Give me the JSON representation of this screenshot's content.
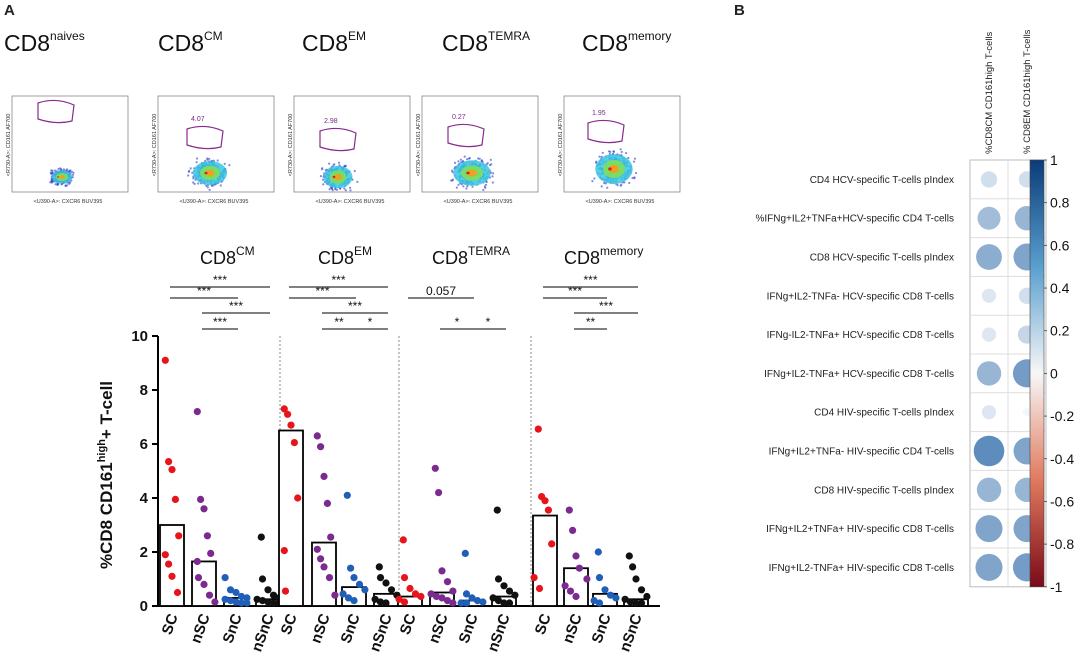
{
  "panel_a_label": "A",
  "panel_b_label": "B",
  "facs": [
    {
      "title": "CD8",
      "sup": "naives",
      "gate_value": "7.5e-3",
      "ylabel": "<R730-A>: CD161 AF700",
      "xlabel": "<U390-A>: CXCR6 BUV395"
    },
    {
      "title": "CD8",
      "sup": "CM",
      "gate_value": "4.07",
      "ylabel": "<R730-A>: CD161 AF700",
      "xlabel": "<U390-A>: CXCR6 BUV395"
    },
    {
      "title": "CD8",
      "sup": "EM",
      "gate_value": "2.98",
      "ylabel": "<R730-A>: CD161 AF700",
      "xlabel": "<U390-A>: CXCR6 BUV395"
    },
    {
      "title": "CD8",
      "sup": "TEMRA",
      "gate_value": "0.27",
      "ylabel": "<R730-A>: CD161 AF700",
      "xlabel": "<U390-A>: CXCR6 BUV395"
    },
    {
      "title": "CD8",
      "sup": "memory",
      "gate_value": "1.95",
      "ylabel": "<R730-A>: CD161 AF700",
      "xlabel": "<U390-A>: CXCR6 BUV395"
    }
  ],
  "chart_data": [
    {
      "type": "scatter",
      "title": "",
      "ylabel": "%CD8 CD161high+ T-cell",
      "ylabel_main": "%CD8 CD161",
      "ylabel_sup": "high",
      "ylabel_tail": "+ T-cell",
      "ylim": [
        0,
        10
      ],
      "yticks": [
        "0",
        "2",
        "4",
        "6",
        "8",
        "10"
      ],
      "categories": [
        "SC",
        "nSC",
        "SnC",
        "nSnC"
      ],
      "colors": {
        "SC": "#e8141b",
        "nSC": "#7b2b90",
        "SnC": "#1f5fb8",
        "nSnC": "#111111"
      },
      "groups": [
        {
          "name": "CD8",
          "sup": "CM",
          "bars": [
            3.0,
            1.65,
            0.3,
            0.25
          ],
          "points": [
            [
              9.1,
              5.35,
              5.05,
              3.95,
              2.6,
              1.9,
              1.55,
              1.1,
              0.5
            ],
            [
              7.2,
              3.95,
              3.6,
              2.6,
              1.95,
              1.65,
              1.05,
              0.8,
              0.4,
              0.15
            ],
            [
              1.05,
              0.6,
              0.5,
              0.35,
              0.3,
              0.25,
              0.2,
              0.15,
              0.1,
              0.05
            ],
            [
              2.55,
              1.0,
              0.6,
              0.4,
              0.3,
              0.25,
              0.2,
              0.15,
              0.1,
              0.05
            ]
          ],
          "annotations": [
            {
              "from": 0,
              "to": 3,
              "label": "***"
            },
            {
              "from": 0,
              "to": 2,
              "label": "***"
            },
            {
              "from": 1,
              "to": 3,
              "label": "***"
            },
            {
              "from": 1,
              "to": 2,
              "label": "***"
            }
          ]
        },
        {
          "name": "CD8",
          "sup": "EM",
          "bars": [
            6.5,
            2.35,
            0.7,
            0.45
          ],
          "points": [
            [
              7.3,
              7.1,
              6.7,
              6.05,
              4.0,
              2.05,
              0.55
            ],
            [
              6.3,
              5.9,
              4.8,
              3.8,
              2.55,
              2.1,
              1.75,
              1.45,
              1.05,
              0.4
            ],
            [
              4.1,
              1.4,
              1.05,
              0.8,
              0.6,
              0.45,
              0.3,
              0.2
            ],
            [
              1.45,
              1.05,
              0.85,
              0.6,
              0.4,
              0.25,
              0.15,
              0.05
            ]
          ],
          "annotations": [
            {
              "from": 0,
              "to": 3,
              "label": "***"
            },
            {
              "from": 0,
              "to": 2,
              "label": "***"
            },
            {
              "from": 1,
              "to": 3,
              "label": "***"
            },
            {
              "from": 1,
              "to": 2,
              "label": "**"
            },
            {
              "from": 2,
              "to": 3,
              "label": "*"
            }
          ]
        },
        {
          "name": "CD8",
          "sup": "TEMRA",
          "bars": [
            0.35,
            0.5,
            0.2,
            0.35
          ],
          "points": [
            [
              2.45,
              1.05,
              0.65,
              0.45,
              0.35,
              0.25,
              0.15
            ],
            [
              5.1,
              4.2,
              1.3,
              0.9,
              0.55,
              0.45,
              0.35,
              0.3,
              0.2,
              0.1
            ],
            [
              1.95,
              0.45,
              0.3,
              0.2,
              0.15,
              0.1,
              0.05
            ],
            [
              3.55,
              1.0,
              0.75,
              0.55,
              0.4,
              0.3,
              0.2,
              0.1,
              0.05
            ]
          ],
          "annotations": [
            {
              "from": 0,
              "to": 2,
              "label": "0.057"
            },
            {
              "from": 1,
              "to": 2,
              "label": "*"
            },
            {
              "from": 2,
              "to": 3,
              "label": "*"
            }
          ]
        },
        {
          "name": "CD8",
          "sup": "memory",
          "bars": [
            3.35,
            1.4,
            0.45,
            0.25
          ],
          "points": [
            [
              6.55,
              4.05,
              3.9,
              3.55,
              2.3,
              1.05,
              0.65
            ],
            [
              3.55,
              2.8,
              1.85,
              1.4,
              1.0,
              0.75,
              0.55,
              0.35
            ],
            [
              2.0,
              1.05,
              0.6,
              0.4,
              0.3,
              0.2,
              0.1
            ],
            [
              1.85,
              1.45,
              1.0,
              0.6,
              0.35,
              0.25,
              0.15,
              0.1,
              0.05
            ]
          ],
          "annotations": [
            {
              "from": 0,
              "to": 3,
              "label": "***"
            },
            {
              "from": 0,
              "to": 2,
              "label": "***"
            },
            {
              "from": 1,
              "to": 3,
              "label": "***"
            },
            {
              "from": 1,
              "to": 2,
              "label": "**"
            }
          ]
        }
      ]
    },
    {
      "type": "heatmap",
      "title": "",
      "columns": [
        "%CD8CM CD161high T-cells",
        "% CD8EM CD161high T-cells"
      ],
      "rows": [
        "CD4 HCV-specific T-cells pIndex",
        "%IFNg+IL2+TNFa+HCV-specific CD4 T-cells",
        "CD8 HCV-specific T-cells pIndex",
        "IFNg+IL2-TNFa- HCV-specific CD8 T-cells",
        "IFNg-IL2-TNFa+ HCV-specific CD8 T-cells",
        "IFNg+IL2-TNFa+ HCV-specific CD8 T-cells",
        "CD4 HIV-specific T-cells pIndex",
        "IFNg+IL2+TNFa- HIV-specific CD4 T-cells",
        "CD8 HIV-specific T-cells pIndex",
        "IFNg+IL2+TNFa+ HIV-specific CD8 T-cells",
        "IFNg+IL2-TNFa+ HIV-specific CD8 T-cells"
      ],
      "values": [
        [
          0.2,
          0.2
        ],
        [
          0.4,
          0.45
        ],
        [
          0.5,
          0.55
        ],
        [
          0.15,
          0.2
        ],
        [
          0.15,
          0.25
        ],
        [
          0.45,
          0.6
        ],
        [
          0.15,
          0.05
        ],
        [
          0.7,
          0.55
        ],
        [
          0.45,
          0.45
        ],
        [
          0.55,
          0.55
        ],
        [
          0.55,
          0.6
        ]
      ],
      "colorbar_range": [
        -1,
        1
      ],
      "colorbar_ticks": [
        "1",
        "0.8",
        "0.6",
        "0.4",
        "0.2",
        "0",
        "-0.2",
        "-0.4",
        "-0.6",
        "-0.8",
        "-1"
      ]
    }
  ]
}
